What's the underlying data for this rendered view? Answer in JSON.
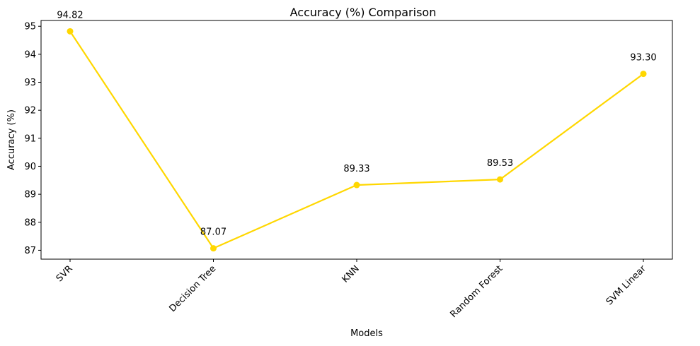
{
  "chart_data": {
    "type": "line",
    "title": "Accuracy (%) Comparison",
    "xlabel": "Models",
    "ylabel": "Accuracy (%)",
    "categories": [
      "SVR",
      "Decision Tree",
      "KNN",
      "Random Forest",
      "SVM Linear"
    ],
    "series": [
      {
        "values": [
          94.82,
          87.07,
          89.33,
          89.53,
          93.3
        ],
        "labels": [
          "94.82",
          "87.07",
          "89.33",
          "89.53",
          "93.30"
        ],
        "color": "#FFD700"
      }
    ],
    "yticks": [
      87,
      88,
      89,
      90,
      91,
      92,
      93,
      94,
      95
    ],
    "ylim": [
      86.683,
      95.207
    ],
    "grid": false,
    "legend": "none",
    "xtick_rotation": 45
  }
}
